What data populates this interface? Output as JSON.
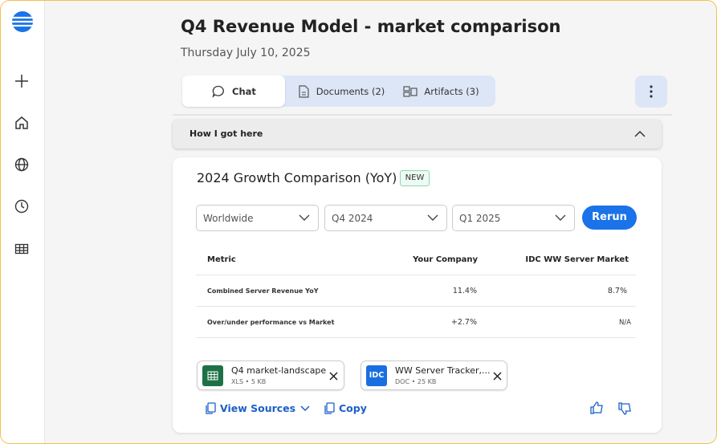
{
  "header": {
    "title": "Q4 Revenue Model - market comparison",
    "date": "Thursday July 10, 2025"
  },
  "tabs": [
    "Chat",
    "Documents (2)",
    "Artifacts (3)"
  ],
  "collapsible": {
    "label": "How I got here"
  },
  "card": {
    "title": "2024 Growth Comparison (YoY)",
    "badge": "NEW",
    "filters": [
      "Worldwide",
      "Q4 2024",
      "Q1 2025"
    ],
    "button": "Rerun",
    "table": {
      "columns": [
        "Metric",
        "Your Company",
        "IDC WW Server Market"
      ],
      "rows": [
        [
          "Combined Server Revenue YoY",
          "11.4%",
          "8.7%"
        ],
        [
          "Over/under performance vs Market",
          "+2.7%",
          "N/A"
        ]
      ]
    },
    "attachments": [
      {
        "name": "Q4 market-landscape",
        "meta": "XLS • 5 KB"
      },
      {
        "icon": "IDC",
        "name": "WW Server Tracker,...",
        "meta": "DOC • 25 KB"
      }
    ],
    "actions": [
      "View Sources",
      "Copy"
    ]
  }
}
